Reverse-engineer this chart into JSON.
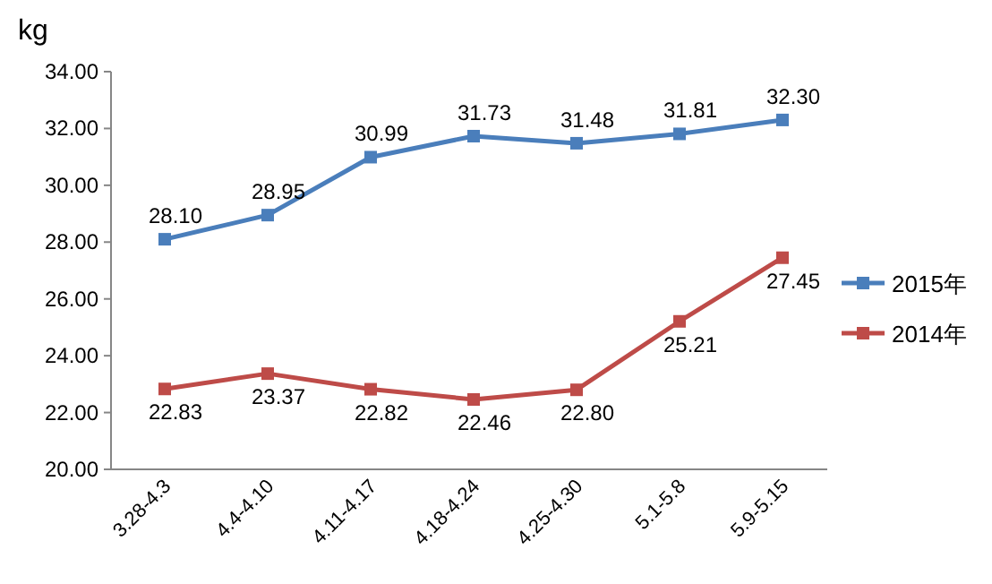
{
  "chart_data": {
    "type": "line",
    "ylabel": "kg",
    "categories": [
      "3.28-4.3",
      "4.4-4.10",
      "4.11-4.17",
      "4.18-4.24",
      "4.25-4.30",
      "5.1-5.8",
      "5.9-5.15"
    ],
    "series": [
      {
        "name": "2015年",
        "color": "#4a7ebb",
        "values": [
          28.1,
          28.95,
          30.99,
          31.73,
          31.48,
          31.81,
          32.3
        ],
        "value_labels": [
          "28.10",
          "28.95",
          "30.99",
          "31.73",
          "31.48",
          "31.81",
          "32.30"
        ]
      },
      {
        "name": "2014年",
        "color": "#be4b48",
        "values": [
          22.83,
          23.37,
          22.82,
          22.46,
          22.8,
          25.21,
          27.45
        ],
        "value_labels": [
          "22.83",
          "23.37",
          "22.82",
          "22.46",
          "22.80",
          "25.21",
          "27.45"
        ]
      }
    ],
    "ylim": [
      20,
      34
    ],
    "yticks": [
      {
        "value": 20,
        "label": "20.00"
      },
      {
        "value": 22,
        "label": "22.00"
      },
      {
        "value": 24,
        "label": "24.00"
      },
      {
        "value": 26,
        "label": "26.00"
      },
      {
        "value": 28,
        "label": "28.00"
      },
      {
        "value": 30,
        "label": "30.00"
      },
      {
        "value": 32,
        "label": "32.00"
      },
      {
        "value": 34,
        "label": "34.00"
      }
    ],
    "grid": false,
    "legend": "right",
    "marker": "square"
  }
}
